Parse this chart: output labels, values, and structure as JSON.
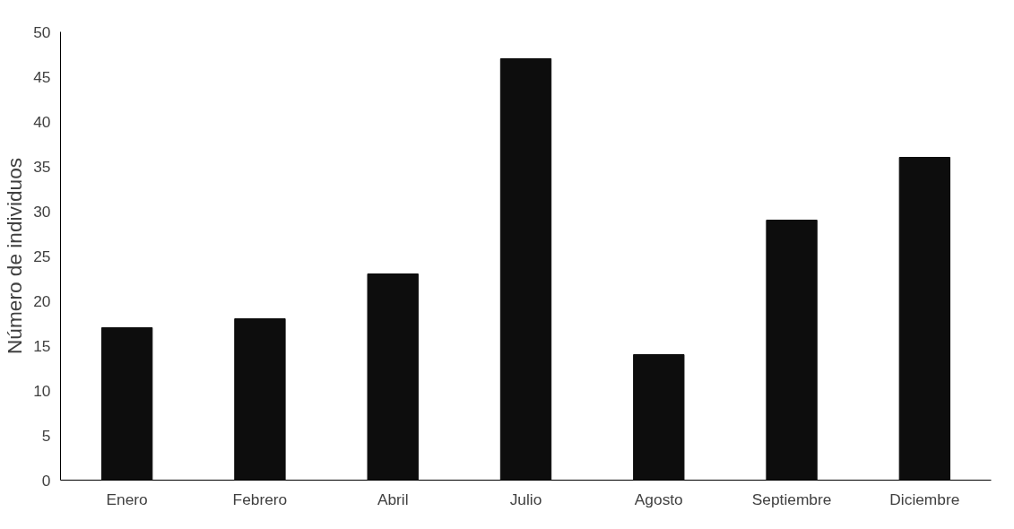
{
  "chart_data": {
    "type": "bar",
    "ylabel": "Número de individuos",
    "categories": [
      "Enero",
      "Febrero",
      "Abril",
      "Julio",
      "Agosto",
      "Septiembre",
      "Diciembre"
    ],
    "series": [
      {
        "color": "#0d0d0d",
        "values": [
          17,
          18,
          23,
          47,
          14,
          29,
          36
        ]
      }
    ],
    "ylim": [
      0,
      50
    ],
    "yticks": [
      0,
      5,
      10,
      15,
      20,
      25,
      30,
      35,
      40,
      45,
      50
    ],
    "grid": false
  }
}
